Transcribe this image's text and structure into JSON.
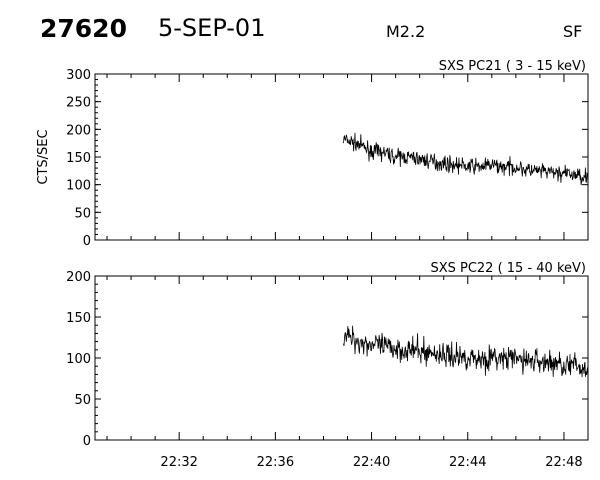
{
  "header": {
    "event_number": "27620",
    "date": "5-SEP-01",
    "flare_class": "M2.2",
    "flag": "SF"
  },
  "colors": {
    "trace": "#000000",
    "axes": "#000000",
    "background": "#ffffff"
  },
  "chart_data": [
    {
      "type": "line",
      "title": "SXS PC21  (  3 - 15 keV)",
      "ylabel": "CTS/SEC",
      "xlabel": "",
      "xlim": [
        "22:28:30",
        "22:49:00"
      ],
      "ylim": [
        0,
        300
      ],
      "yticks": [
        0,
        50,
        100,
        150,
        200,
        250,
        300
      ],
      "xticks": [
        "22:32",
        "22:36",
        "22:40",
        "22:44",
        "22:48"
      ],
      "data_start": "22:38:50",
      "grid": false,
      "series": [
        {
          "x": [
            "22:38:50",
            "22:39:30",
            "22:40:00",
            "22:40:30",
            "22:41:00",
            "22:41:30",
            "22:42:00",
            "22:42:30",
            "22:43:00",
            "22:43:30",
            "22:44:00",
            "22:44:30",
            "22:45:00",
            "22:45:30",
            "22:46:00",
            "22:46:30",
            "22:47:00",
            "22:47:30",
            "22:48:00",
            "22:48:30",
            "22:49:00"
          ],
          "values": [
            182,
            172,
            160,
            158,
            150,
            150,
            146,
            142,
            138,
            136,
            133,
            133,
            135,
            132,
            132,
            126,
            124,
            122,
            120,
            117,
            115
          ]
        }
      ]
    },
    {
      "type": "line",
      "title": "SXS PC22  ( 15 - 40 keV)",
      "ylabel": "",
      "xlabel": "",
      "xlim": [
        "22:28:30",
        "22:49:00"
      ],
      "ylim": [
        0,
        200
      ],
      "yticks": [
        0,
        50,
        100,
        150,
        200
      ],
      "xticks": [
        "22:32",
        "22:36",
        "22:40",
        "22:44",
        "22:48"
      ],
      "data_start": "22:38:50",
      "grid": false,
      "series": [
        {
          "x": [
            "22:38:50",
            "22:39:30",
            "22:40:00",
            "22:40:30",
            "22:41:00",
            "22:41:30",
            "22:42:00",
            "22:42:30",
            "22:43:00",
            "22:43:30",
            "22:44:00",
            "22:44:30",
            "22:45:00",
            "22:45:30",
            "22:46:00",
            "22:46:30",
            "22:47:00",
            "22:47:30",
            "22:48:00",
            "22:48:30",
            "22:49:00"
          ],
          "values": [
            128,
            120,
            117,
            113,
            112,
            110,
            108,
            106,
            104,
            102,
            101,
            99,
            100,
            99,
            99,
            97,
            96,
            94,
            92,
            90,
            85
          ]
        }
      ]
    }
  ]
}
